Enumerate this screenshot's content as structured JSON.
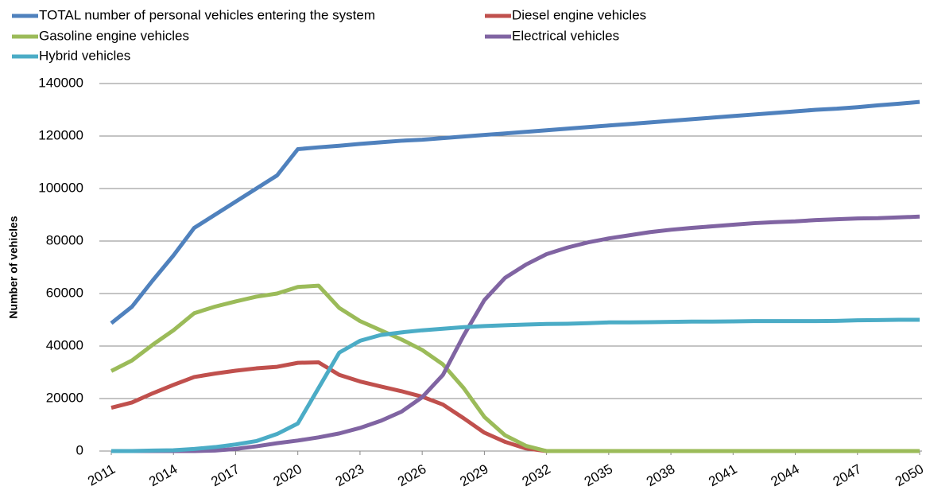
{
  "chart_data": {
    "type": "line",
    "y_label": "Number of vehicles",
    "x": [
      2011,
      2012,
      2013,
      2014,
      2015,
      2016,
      2017,
      2018,
      2019,
      2020,
      2021,
      2022,
      2023,
      2024,
      2025,
      2026,
      2027,
      2028,
      2029,
      2030,
      2031,
      2032,
      2033,
      2034,
      2035,
      2036,
      2037,
      2038,
      2039,
      2040,
      2041,
      2042,
      2043,
      2044,
      2045,
      2046,
      2047,
      2048,
      2049,
      2050
    ],
    "xlim": [
      2011,
      2050
    ],
    "xticks": [
      2011,
      2014,
      2017,
      2020,
      2023,
      2026,
      2029,
      2032,
      2035,
      2038,
      2041,
      2044,
      2047,
      2050
    ],
    "ylim": [
      0,
      140000
    ],
    "yticks": [
      0,
      20000,
      40000,
      60000,
      80000,
      100000,
      120000,
      140000
    ],
    "grid": true,
    "legend": "top",
    "series": [
      {
        "name": "TOTAL number of personal vehicles entering the system",
        "color": "#4f81bd",
        "values": [
          48700,
          55000,
          65000,
          74500,
          85000,
          90000,
          95000,
          100000,
          105000,
          115000,
          115700,
          116300,
          117000,
          117600,
          118200,
          118600,
          119200,
          119800,
          120400,
          121000,
          121600,
          122200,
          122800,
          123400,
          124000,
          124600,
          125200,
          125800,
          126400,
          127000,
          127600,
          128200,
          128800,
          129400,
          130000,
          130400,
          131000,
          131700,
          132300,
          133000
        ]
      },
      {
        "name": "Diesel engine vehicles",
        "color": "#c0504d",
        "values": [
          16500,
          18500,
          22000,
          25200,
          28200,
          29500,
          30600,
          31500,
          32100,
          33600,
          33800,
          29000,
          26500,
          24600,
          22800,
          20700,
          17700,
          12500,
          7000,
          3500,
          1000,
          0,
          0,
          0,
          0,
          0,
          0,
          0,
          0,
          0,
          0,
          0,
          0,
          0,
          0,
          0,
          0,
          0,
          0,
          0
        ]
      },
      {
        "name": "Gasoline engine vehicles",
        "color": "#9bbb59",
        "values": [
          30500,
          34500,
          40500,
          46000,
          52500,
          55000,
          57000,
          58800,
          60000,
          62500,
          63000,
          54500,
          49500,
          46000,
          42500,
          38500,
          33000,
          24000,
          13000,
          6000,
          2000,
          0,
          0,
          0,
          0,
          0,
          0,
          0,
          0,
          0,
          0,
          0,
          0,
          0,
          0,
          0,
          0,
          0,
          0,
          0
        ]
      },
      {
        "name": "Electrical vehicles",
        "color": "#8064a2",
        "values": [
          0,
          0,
          0,
          0,
          0,
          200,
          800,
          1800,
          3000,
          4000,
          5200,
          6700,
          8800,
          11500,
          15000,
          20500,
          29000,
          44000,
          57500,
          66000,
          71000,
          75000,
          77500,
          79500,
          81000,
          82200,
          83400,
          84300,
          85000,
          85600,
          86200,
          86800,
          87200,
          87500,
          88000,
          88300,
          88600,
          88700,
          89000,
          89300
        ]
      },
      {
        "name": "Hybrid vehicles",
        "color": "#4bacc6",
        "values": [
          0,
          0,
          200,
          300,
          800,
          1500,
          2500,
          3800,
          6500,
          10500,
          24000,
          37500,
          42000,
          44200,
          45200,
          46000,
          46600,
          47200,
          47600,
          47900,
          48200,
          48400,
          48500,
          48700,
          49000,
          49000,
          49100,
          49200,
          49300,
          49300,
          49400,
          49500,
          49500,
          49500,
          49500,
          49600,
          49800,
          49900,
          50000,
          50000
        ]
      }
    ]
  }
}
